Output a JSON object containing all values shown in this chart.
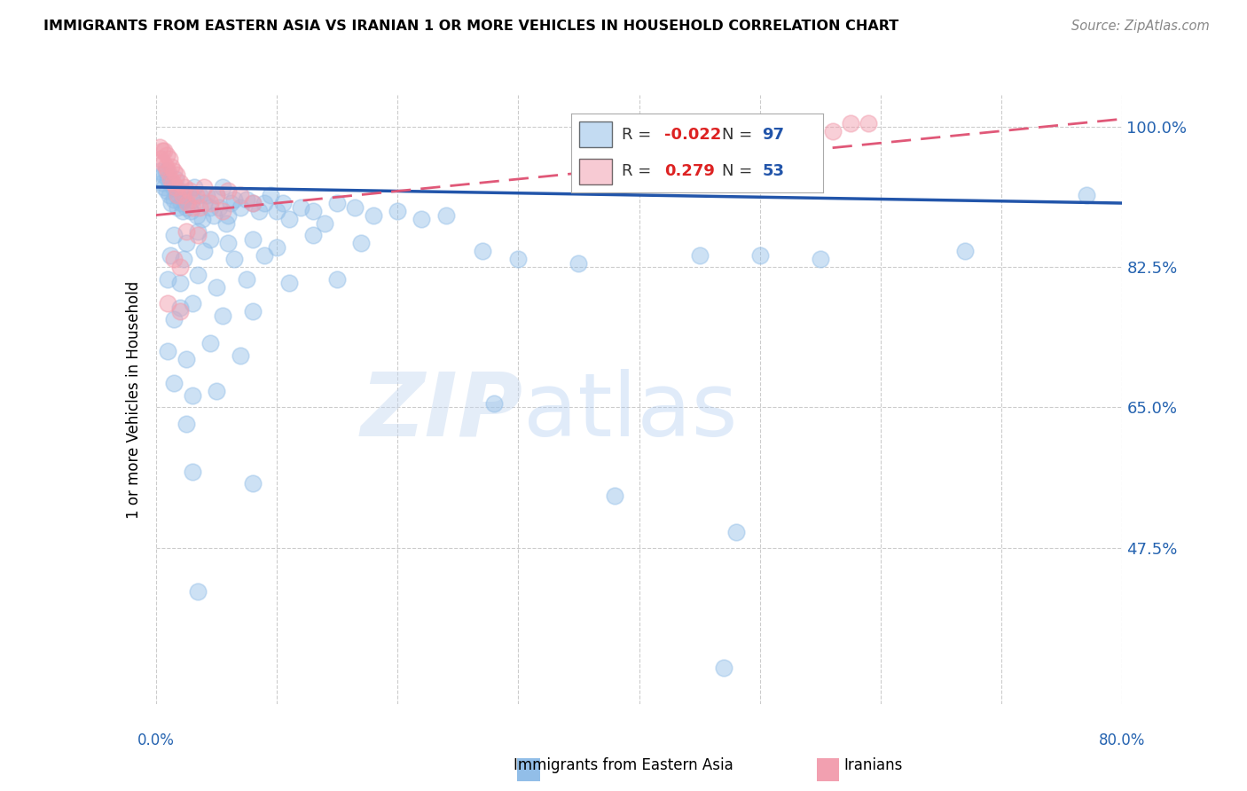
{
  "title": "IMMIGRANTS FROM EASTERN ASIA VS IRANIAN 1 OR MORE VEHICLES IN HOUSEHOLD CORRELATION CHART",
  "source": "Source: ZipAtlas.com",
  "ylabel": "1 or more Vehicles in Household",
  "xlim": [
    0.0,
    80.0
  ],
  "ylim": [
    28.0,
    104.0
  ],
  "yticks": [
    47.5,
    65.0,
    82.5,
    100.0
  ],
  "xticks": [
    0,
    10,
    20,
    30,
    40,
    50,
    60,
    70,
    80
  ],
  "blue_color": "#92BEE8",
  "pink_color": "#F2A0B0",
  "blue_line_color": "#2255AA",
  "pink_line_color": "#E05878",
  "legend_r_blue": "-0.022",
  "legend_n_blue": "97",
  "legend_r_pink": "0.279",
  "legend_n_pink": "53",
  "watermark_zip": "ZIP",
  "watermark_atlas": "atlas",
  "blue_points": [
    [
      0.3,
      94.5
    ],
    [
      0.5,
      93.0
    ],
    [
      0.6,
      94.0
    ],
    [
      0.7,
      92.5
    ],
    [
      0.8,
      94.5
    ],
    [
      0.9,
      92.0
    ],
    [
      1.0,
      93.5
    ],
    [
      1.1,
      91.5
    ],
    [
      1.2,
      93.0
    ],
    [
      1.3,
      90.5
    ],
    [
      1.4,
      92.5
    ],
    [
      1.5,
      91.0
    ],
    [
      1.6,
      93.5
    ],
    [
      1.7,
      91.5
    ],
    [
      1.8,
      90.0
    ],
    [
      2.0,
      92.0
    ],
    [
      2.1,
      90.5
    ],
    [
      2.2,
      89.5
    ],
    [
      2.3,
      91.0
    ],
    [
      2.5,
      90.0
    ],
    [
      2.7,
      91.5
    ],
    [
      2.9,
      89.5
    ],
    [
      3.0,
      91.0
    ],
    [
      3.2,
      92.5
    ],
    [
      3.4,
      89.0
    ],
    [
      3.6,
      91.5
    ],
    [
      3.8,
      88.5
    ],
    [
      4.0,
      90.5
    ],
    [
      4.2,
      91.5
    ],
    [
      4.5,
      90.0
    ],
    [
      4.8,
      89.0
    ],
    [
      5.0,
      91.5
    ],
    [
      5.2,
      90.0
    ],
    [
      5.5,
      92.5
    ],
    [
      5.8,
      88.0
    ],
    [
      6.0,
      89.0
    ],
    [
      6.2,
      90.5
    ],
    [
      6.5,
      91.0
    ],
    [
      7.0,
      90.0
    ],
    [
      7.5,
      91.0
    ],
    [
      8.0,
      90.5
    ],
    [
      8.5,
      89.5
    ],
    [
      9.0,
      90.5
    ],
    [
      9.5,
      91.5
    ],
    [
      10.0,
      89.5
    ],
    [
      10.5,
      90.5
    ],
    [
      11.0,
      88.5
    ],
    [
      12.0,
      90.0
    ],
    [
      13.0,
      89.5
    ],
    [
      14.0,
      88.0
    ],
    [
      15.0,
      90.5
    ],
    [
      16.5,
      90.0
    ],
    [
      18.0,
      89.0
    ],
    [
      20.0,
      89.5
    ],
    [
      22.0,
      88.5
    ],
    [
      24.0,
      89.0
    ],
    [
      1.5,
      86.5
    ],
    [
      2.5,
      85.5
    ],
    [
      3.5,
      87.0
    ],
    [
      4.5,
      86.0
    ],
    [
      6.0,
      85.5
    ],
    [
      8.0,
      86.0
    ],
    [
      10.0,
      85.0
    ],
    [
      13.0,
      86.5
    ],
    [
      17.0,
      85.5
    ],
    [
      1.2,
      84.0
    ],
    [
      2.3,
      83.5
    ],
    [
      4.0,
      84.5
    ],
    [
      6.5,
      83.5
    ],
    [
      9.0,
      84.0
    ],
    [
      1.0,
      81.0
    ],
    [
      2.0,
      80.5
    ],
    [
      3.5,
      81.5
    ],
    [
      5.0,
      80.0
    ],
    [
      7.5,
      81.0
    ],
    [
      11.0,
      80.5
    ],
    [
      15.0,
      81.0
    ],
    [
      1.5,
      76.0
    ],
    [
      2.0,
      77.5
    ],
    [
      3.0,
      78.0
    ],
    [
      5.5,
      76.5
    ],
    [
      8.0,
      77.0
    ],
    [
      1.0,
      72.0
    ],
    [
      2.5,
      71.0
    ],
    [
      4.5,
      73.0
    ],
    [
      7.0,
      71.5
    ],
    [
      1.5,
      68.0
    ],
    [
      3.0,
      66.5
    ],
    [
      5.0,
      67.0
    ],
    [
      2.5,
      63.0
    ],
    [
      27.0,
      84.5
    ],
    [
      35.0,
      83.0
    ],
    [
      45.0,
      84.0
    ],
    [
      55.0,
      83.5
    ],
    [
      67.0,
      84.5
    ],
    [
      77.0,
      91.5
    ],
    [
      50.0,
      84.0
    ],
    [
      30.0,
      83.5
    ],
    [
      3.0,
      57.0
    ],
    [
      8.0,
      55.5
    ],
    [
      28.0,
      65.5
    ],
    [
      38.0,
      54.0
    ],
    [
      48.0,
      49.5
    ],
    [
      3.5,
      42.0
    ],
    [
      47.0,
      32.5
    ]
  ],
  "pink_points": [
    [
      0.3,
      97.5
    ],
    [
      0.4,
      96.0
    ],
    [
      0.5,
      97.0
    ],
    [
      0.6,
      95.5
    ],
    [
      0.7,
      97.0
    ],
    [
      0.8,
      95.0
    ],
    [
      0.9,
      96.5
    ],
    [
      1.0,
      94.5
    ],
    [
      1.1,
      96.0
    ],
    [
      1.2,
      93.5
    ],
    [
      1.3,
      95.0
    ],
    [
      1.4,
      93.0
    ],
    [
      1.5,
      94.5
    ],
    [
      1.6,
      92.5
    ],
    [
      1.7,
      94.0
    ],
    [
      1.8,
      91.5
    ],
    [
      2.0,
      93.0
    ],
    [
      2.2,
      91.5
    ],
    [
      2.4,
      92.5
    ],
    [
      2.6,
      90.5
    ],
    [
      2.8,
      92.0
    ],
    [
      3.0,
      90.0
    ],
    [
      3.3,
      91.5
    ],
    [
      3.6,
      90.0
    ],
    [
      4.0,
      92.5
    ],
    [
      4.5,
      90.5
    ],
    [
      5.0,
      91.5
    ],
    [
      5.5,
      89.5
    ],
    [
      6.0,
      92.0
    ],
    [
      7.0,
      91.5
    ],
    [
      8.0,
      90.5
    ],
    [
      2.5,
      87.0
    ],
    [
      3.5,
      86.5
    ],
    [
      1.5,
      83.5
    ],
    [
      2.0,
      82.5
    ],
    [
      1.0,
      78.0
    ],
    [
      2.0,
      77.0
    ],
    [
      56.0,
      99.5
    ],
    [
      57.5,
      100.5
    ],
    [
      59.0,
      100.5
    ]
  ]
}
